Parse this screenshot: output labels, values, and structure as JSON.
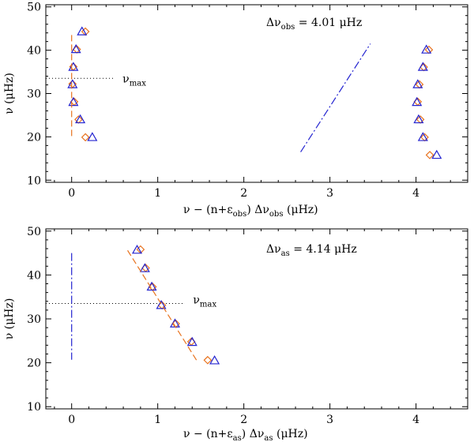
{
  "colors": {
    "diamond": "#e8731f",
    "triangle": "#2424d0",
    "dash": "#e8731f",
    "dashdot": "#2424d0",
    "dotted": "#000000"
  },
  "chart_data": [
    {
      "type": "scatter",
      "xlabel_parts": [
        "ν − (n+ε",
        "obs",
        ") Δν",
        "obs",
        "  (μHz)"
      ],
      "ylabel": "ν (μHz)",
      "xlim": [
        -0.3,
        4.6
      ],
      "ylim": [
        9.5,
        50.5
      ],
      "xticks": [
        0,
        1,
        2,
        3,
        4
      ],
      "yticks": [
        10,
        20,
        30,
        40,
        50
      ],
      "annotation": {
        "prefix": "Δν",
        "sub": "obs",
        "value": " = 4.01 μHz"
      },
      "numax": {
        "label": "ν",
        "sub": "max",
        "value": 33.5,
        "x_range": [
          -0.3,
          0.5
        ]
      },
      "series": [
        {
          "name": "diamonds",
          "marker": "diamond",
          "points": [
            [
              0.16,
              44.3
            ],
            [
              0.06,
              40.2
            ],
            [
              0.02,
              36.2
            ],
            [
              0.01,
              32.2
            ],
            [
              0.03,
              28.1
            ],
            [
              0.08,
              24.0
            ],
            [
              0.16,
              19.9
            ],
            [
              4.15,
              40.1
            ],
            [
              4.09,
              36.1
            ],
            [
              4.04,
              32.1
            ],
            [
              4.02,
              28.1
            ],
            [
              4.05,
              24.0
            ],
            [
              4.1,
              19.9
            ],
            [
              4.16,
              15.8
            ]
          ]
        },
        {
          "name": "triangles",
          "marker": "triangle",
          "points": [
            [
              0.12,
              44.3
            ],
            [
              0.05,
              40.2
            ],
            [
              0.02,
              36.1
            ],
            [
              0.01,
              32.1
            ],
            [
              0.02,
              28.0
            ],
            [
              0.1,
              24.0
            ],
            [
              0.24,
              19.9
            ],
            [
              4.12,
              40.1
            ],
            [
              4.08,
              36.1
            ],
            [
              4.02,
              32.1
            ],
            [
              4.01,
              28.0
            ],
            [
              4.03,
              24.0
            ],
            [
              4.08,
              19.9
            ],
            [
              4.24,
              15.8
            ]
          ]
        },
        {
          "name": "dashed",
          "style": "dash",
          "points": [
            [
              0.0,
              43.5
            ],
            [
              0.0,
              19.5
            ]
          ]
        },
        {
          "name": "dash-dot",
          "style": "dashdot",
          "points": [
            [
              2.66,
              16.5
            ],
            [
              3.47,
              41.5
            ]
          ]
        }
      ]
    },
    {
      "type": "scatter",
      "xlabel_parts": [
        "ν − (n+ε",
        "as",
        ") Δν",
        "as",
        "  (μHz)"
      ],
      "ylabel": "ν (μHz)",
      "xlim": [
        -0.3,
        4.6
      ],
      "ylim": [
        9.5,
        50.5
      ],
      "xticks": [
        0,
        1,
        2,
        3,
        4
      ],
      "yticks": [
        10,
        20,
        30,
        40,
        50
      ],
      "annotation": {
        "prefix": "Δν",
        "sub": "as",
        "value": " = 4.14 μHz"
      },
      "numax": {
        "label": "ν",
        "sub": "max",
        "value": 33.5,
        "x_range": [
          -0.3,
          1.3
        ]
      },
      "series": [
        {
          "name": "diamonds",
          "marker": "diamond",
          "points": [
            [
              0.8,
              45.8
            ],
            [
              0.86,
              41.6
            ],
            [
              0.94,
              37.3
            ],
            [
              1.05,
              33.1
            ],
            [
              1.21,
              28.9
            ],
            [
              1.39,
              24.8
            ],
            [
              1.58,
              20.6
            ]
          ]
        },
        {
          "name": "triangles",
          "marker": "triangle",
          "points": [
            [
              0.76,
              45.7
            ],
            [
              0.85,
              41.5
            ],
            [
              0.93,
              37.3
            ],
            [
              1.04,
              33.1
            ],
            [
              1.2,
              28.9
            ],
            [
              1.4,
              24.7
            ],
            [
              1.66,
              20.5
            ]
          ]
        },
        {
          "name": "dashed",
          "style": "dash",
          "points": [
            [
              0.65,
              45.6
            ],
            [
              1.45,
              20.6
            ]
          ]
        },
        {
          "name": "dash-dot",
          "style": "dashdot",
          "points": [
            [
              0.0,
              45.0
            ],
            [
              0.0,
              20.7
            ]
          ]
        }
      ]
    }
  ]
}
